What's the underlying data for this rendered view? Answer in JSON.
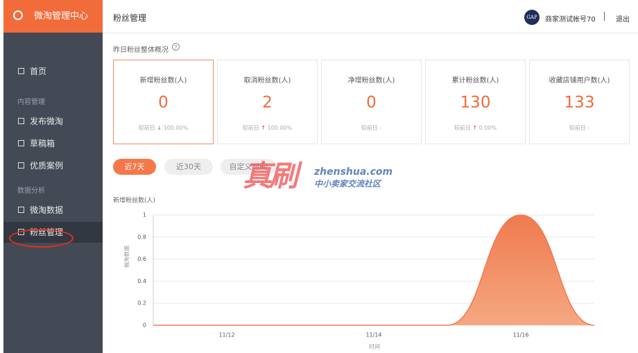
{
  "sidebar": {
    "brand": "微淘管理中心",
    "home": "首页",
    "groups": [
      {
        "title": "内容管理",
        "items": [
          "发布微淘",
          "草稿箱",
          "优质案例"
        ]
      },
      {
        "title": "数据分析",
        "items": [
          "微淘数据",
          "粉丝管理"
        ]
      }
    ]
  },
  "header": {
    "title": "粉丝管理",
    "logo": "GAP",
    "account": "商家测试帐号70",
    "logout": "退出"
  },
  "overview": {
    "title": "昨日粉丝整体概况",
    "help": "?",
    "cards": [
      {
        "label": "新增粉丝数(人)",
        "value": 0,
        "compare": "较前日",
        "trend": "down",
        "change": "100.00%"
      },
      {
        "label": "取消粉丝数(人)",
        "value": 2,
        "compare": "较前日",
        "trend": "up",
        "change": "100.00%"
      },
      {
        "label": "净增粉丝数(人)",
        "value": 0,
        "compare": "较前日",
        "change": "-"
      },
      {
        "label": "累计粉丝数(人)",
        "value": 130,
        "compare": "较前日",
        "trend": "up",
        "change": "0.00%"
      },
      {
        "label": "收藏店铺用户数(人)",
        "value": 133,
        "compare": "较前日",
        "change": "-"
      }
    ]
  },
  "date_filter": {
    "options": [
      "近7天",
      "近30天",
      "自定义时间"
    ]
  },
  "watermark": {
    "brand": "真刷",
    "url": "zhenshua.com",
    "slogan": "中小卖家交流社区"
  },
  "chart_data": {
    "type": "area",
    "title": "新增粉丝数(人)",
    "y_label": "微淘数据",
    "x_label": "时间",
    "categories": [
      null,
      "11/12",
      null,
      "11/14",
      null,
      "11/16",
      null
    ],
    "values": [
      0,
      0,
      0,
      0,
      0,
      1,
      0
    ],
    "color": "#f07a4f",
    "ylim": [
      0,
      1
    ],
    "yticks": [
      0,
      0.2,
      0.4,
      0.6,
      0.8,
      1
    ],
    "grid": true
  }
}
